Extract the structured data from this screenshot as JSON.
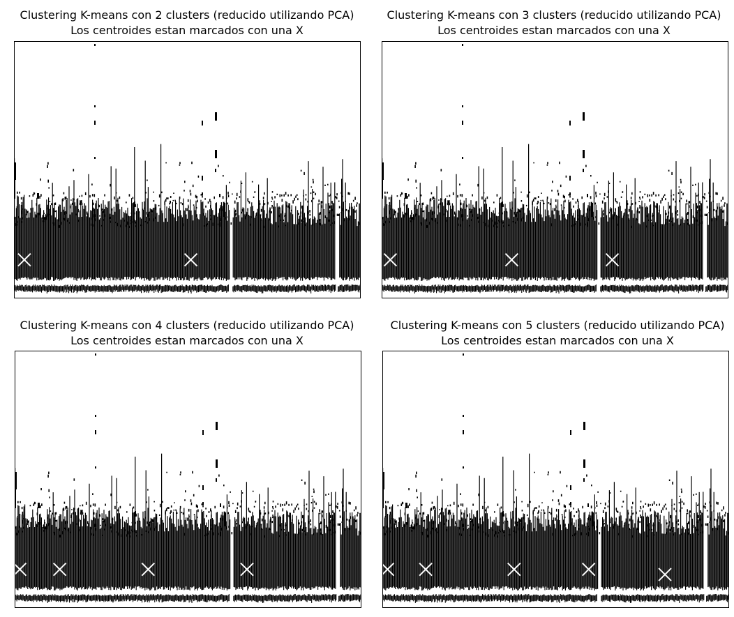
{
  "chart_data": [
    {
      "type": "scatter",
      "title": "Clustering K-means con 2 clusters (reducido utilizando PCA)",
      "subtitle": "Los centroides estan marcados con una X",
      "k": 2,
      "marker_color": "#000000",
      "centroid_color": "#ffffff",
      "centroid_marker": "x",
      "xlim": [
        0,
        100
      ],
      "ylim": [
        0,
        100
      ],
      "xticks": false,
      "yticks": false,
      "grid": false,
      "centroids": [
        {
          "x": 3,
          "y": 15
        },
        {
          "x": 51,
          "y": 15
        }
      ]
    },
    {
      "type": "scatter",
      "title": "Clustering K-means con 3 clusters (reducido utilizando PCA)",
      "subtitle": "Los centroides estan marcados con una X",
      "k": 3,
      "marker_color": "#000000",
      "centroid_color": "#ffffff",
      "centroid_marker": "x",
      "xlim": [
        0,
        100
      ],
      "ylim": [
        0,
        100
      ],
      "xticks": false,
      "yticks": false,
      "grid": false,
      "centroids": [
        {
          "x": 2.5,
          "y": 15
        },
        {
          "x": 37.5,
          "y": 15
        },
        {
          "x": 66.5,
          "y": 15
        }
      ]
    },
    {
      "type": "scatter",
      "title": "Clustering K-means con 4 clusters (reducido utilizando PCA)",
      "subtitle": "Los centroides estan marcados con una X",
      "k": 4,
      "marker_color": "#000000",
      "centroid_color": "#ffffff",
      "centroid_marker": "x",
      "xlim": [
        0,
        100
      ],
      "ylim": [
        0,
        100
      ],
      "xticks": false,
      "yticks": false,
      "grid": false,
      "centroids": [
        {
          "x": 1.5,
          "y": 15
        },
        {
          "x": 13,
          "y": 15
        },
        {
          "x": 38.5,
          "y": 15
        },
        {
          "x": 67,
          "y": 15
        }
      ]
    },
    {
      "type": "scatter",
      "title": "Clustering K-means con 5 clusters (reducido utilizando PCA)",
      "subtitle": "Los centroides estan marcados con una X",
      "k": 5,
      "marker_color": "#000000",
      "centroid_color": "#ffffff",
      "centroid_marker": "x",
      "xlim": [
        0,
        100
      ],
      "ylim": [
        0,
        100
      ],
      "xticks": false,
      "yticks": false,
      "grid": false,
      "centroids": [
        {
          "x": 1.5,
          "y": 15
        },
        {
          "x": 12.5,
          "y": 15
        },
        {
          "x": 38,
          "y": 15
        },
        {
          "x": 59.5,
          "y": 15
        },
        {
          "x": 81.5,
          "y": 13
        }
      ]
    }
  ]
}
